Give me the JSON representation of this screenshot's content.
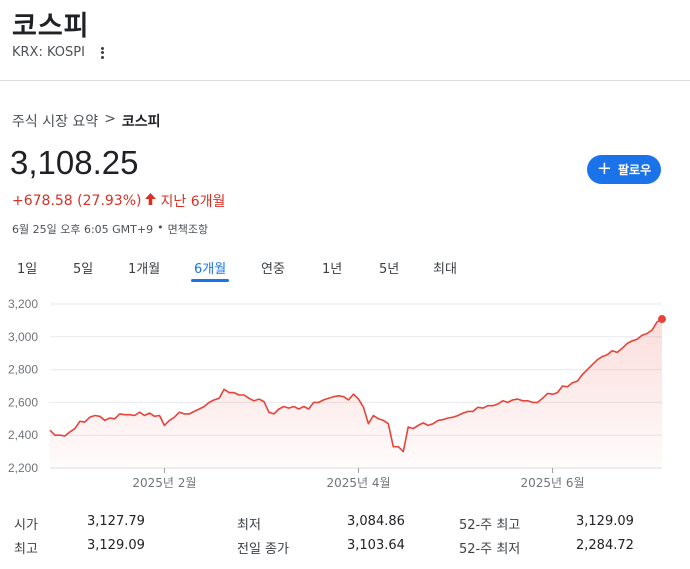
{
  "header": {
    "title": "코스피",
    "exchange_label": "KRX: KOSPI"
  },
  "breadcrumb": {
    "parent": "주식 시장 요약",
    "separator": ">",
    "current": "코스피"
  },
  "quote": {
    "price": "3,108.25",
    "change": "+678.58 (27.93%)",
    "direction_icon": "arrow-up-icon",
    "period_label": "지난 6개월",
    "timestamp": "6월 25일 오후 6:05 GMT+9",
    "bullet": "•",
    "disclaimer": "면책조항"
  },
  "follow_button": {
    "label": "팔로우",
    "icon": "plus-icon"
  },
  "tabs": [
    {
      "label": "1일"
    },
    {
      "label": "5일"
    },
    {
      "label": "1개월"
    },
    {
      "label": "6개월",
      "active": true
    },
    {
      "label": "연중"
    },
    {
      "label": "1년"
    },
    {
      "label": "5년"
    },
    {
      "label": "최대"
    }
  ],
  "colors": {
    "line": "#e5443a",
    "accent": "#1a73e8",
    "negative": "#d93025"
  },
  "chart_data": {
    "type": "area",
    "ylim": [
      2200,
      3200
    ],
    "yticks": [
      "3,200",
      "3,000",
      "2,800",
      "2,600",
      "2,400",
      "2,200"
    ],
    "ytick_values": [
      3200,
      3000,
      2800,
      2600,
      2400,
      2200
    ],
    "xtick_labels": [
      "2025년 2월",
      "2025년 4월",
      "2025년 6월"
    ],
    "xtick_index": [
      23,
      62,
      101
    ],
    "grid": true,
    "values": [
      2430,
      2400,
      2400,
      2395,
      2420,
      2440,
      2485,
      2480,
      2510,
      2520,
      2515,
      2490,
      2505,
      2500,
      2530,
      2525,
      2525,
      2520,
      2540,
      2520,
      2535,
      2515,
      2520,
      2460,
      2490,
      2510,
      2540,
      2530,
      2530,
      2545,
      2560,
      2575,
      2600,
      2615,
      2625,
      2680,
      2660,
      2660,
      2645,
      2645,
      2625,
      2610,
      2620,
      2605,
      2540,
      2530,
      2560,
      2575,
      2565,
      2575,
      2560,
      2575,
      2560,
      2600,
      2600,
      2615,
      2625,
      2635,
      2640,
      2635,
      2615,
      2650,
      2620,
      2570,
      2470,
      2520,
      2500,
      2490,
      2470,
      2330,
      2330,
      2300,
      2450,
      2440,
      2460,
      2475,
      2460,
      2470,
      2490,
      2495,
      2505,
      2510,
      2520,
      2535,
      2545,
      2545,
      2570,
      2565,
      2580,
      2580,
      2590,
      2610,
      2600,
      2615,
      2620,
      2610,
      2610,
      2600,
      2600,
      2625,
      2655,
      2650,
      2660,
      2700,
      2695,
      2720,
      2730,
      2770,
      2800,
      2830,
      2860,
      2880,
      2890,
      2915,
      2905,
      2930,
      2960,
      2975,
      2985,
      3010,
      3020,
      3040,
      3090,
      3108.25
    ]
  },
  "stats": [
    {
      "label": "시가",
      "value": "3,127.79"
    },
    {
      "label": "최저",
      "value": "3,084.86"
    },
    {
      "label": "52-주 최고",
      "value": "3,129.09"
    },
    {
      "label": "최고",
      "value": "3,129.09"
    },
    {
      "label": "전일 종가",
      "value": "3,103.64"
    },
    {
      "label": "52-주 최저",
      "value": "2,284.72"
    }
  ]
}
